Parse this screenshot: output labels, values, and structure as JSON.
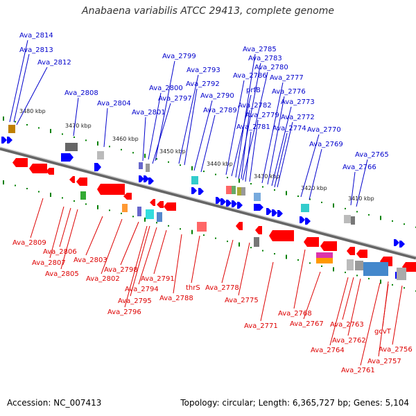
{
  "title": "Anabaena variabilis ATCC 29413, complete genome",
  "footer": {
    "accession": "Accession: NC_007413",
    "summary": "Topology: circular; Length: 6,365,727 bp; Genes: 5,104"
  },
  "colors": {
    "forward": "#0000ff",
    "reverse": "#ff0000",
    "backbone": "#888888",
    "ticks": "#008000"
  },
  "kbp_marks": [
    "3480 kbp",
    "3470 kbp",
    "3460 kbp",
    "3450 kbp",
    "3440 kbp",
    "3430 kbp",
    "3420 kbp",
    "3410 kbp"
  ],
  "forward_genes": [
    "Ava_2814",
    "Ava_2813",
    "Ava_2812",
    "Ava_2808",
    "Ava_2804",
    "Ava_2801",
    "Ava_2800",
    "Ava_2799",
    "Ava_2797",
    "Ava_2793",
    "Ava_2792",
    "Ava_2790",
    "Ava_2789",
    "Ava_2786",
    "prfB",
    "Ava_2785",
    "Ava_2783",
    "Ava_2782",
    "Ava_2781",
    "Ava_2780",
    "Ava_2779",
    "Ava_2777",
    "Ava_2776",
    "Ava_2774",
    "Ava_2773",
    "Ava_2772",
    "Ava_2770",
    "Ava_2769",
    "Ava_2766",
    "Ava_2765"
  ],
  "reverse_genes": [
    "Ava_2809",
    "Ava_2807",
    "Ava_2806",
    "Ava_2805",
    "Ava_2803",
    "Ava_2802",
    "Ava_2798",
    "Ava_2796",
    "Ava_2795",
    "Ava_2794",
    "Ava_2791",
    "Ava_2788",
    "thrS",
    "Ava_2778",
    "Ava_2775",
    "Ava_2771",
    "Ava_2768",
    "Ava_2767",
    "Ava_2764",
    "Ava_2763",
    "Ava_2762",
    "gcvT",
    "Ava_2761",
    "Ava_2757",
    "Ava_2756"
  ]
}
